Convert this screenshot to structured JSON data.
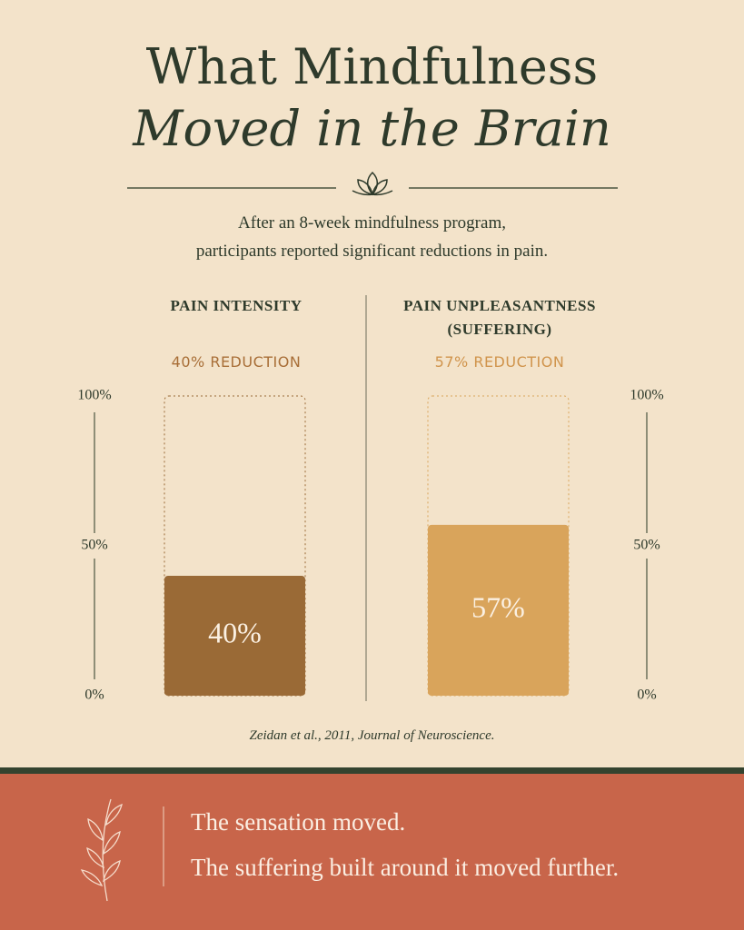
{
  "header": {
    "title": "What Mindfulness",
    "title_italic": "Moved in the Brain",
    "subtitle": [
      "After an 8-week mindfulness program,",
      "participants reported significant reductions in pain."
    ]
  },
  "chart_data": [
    {
      "type": "bar",
      "title": "PAIN INTENSITY",
      "subtitle": "40% REDUCTION",
      "values": [
        40
      ],
      "value_labels": [
        "40%"
      ],
      "color": "#9a6a36",
      "subtitle_color": "#a86e37",
      "ylim": [
        0,
        100
      ],
      "yticks": [
        {
          "value": 0,
          "label": "0%"
        },
        {
          "value": 50,
          "label": "50%"
        },
        {
          "value": 100,
          "label": "100%"
        }
      ],
      "axis_position": "left"
    },
    {
      "type": "bar",
      "title": "PAIN UNPLEASANTNESS (SUFFERING)",
      "subtitle": "57% REDUCTION",
      "values": [
        57
      ],
      "value_labels": [
        "57%"
      ],
      "color": "#d9a45b",
      "subtitle_color": "#d0944c",
      "ylim": [
        0,
        100
      ],
      "yticks": [
        {
          "value": 0,
          "label": "0%"
        },
        {
          "value": 50,
          "label": "50%"
        },
        {
          "value": 100,
          "label": "100%"
        }
      ],
      "axis_position": "right"
    }
  ],
  "citation": "Zeidan et al., 2011, Journal of Neuroscience.",
  "footer": {
    "lines": [
      "The sensation moved.",
      "The suffering built around it moved further."
    ]
  }
}
